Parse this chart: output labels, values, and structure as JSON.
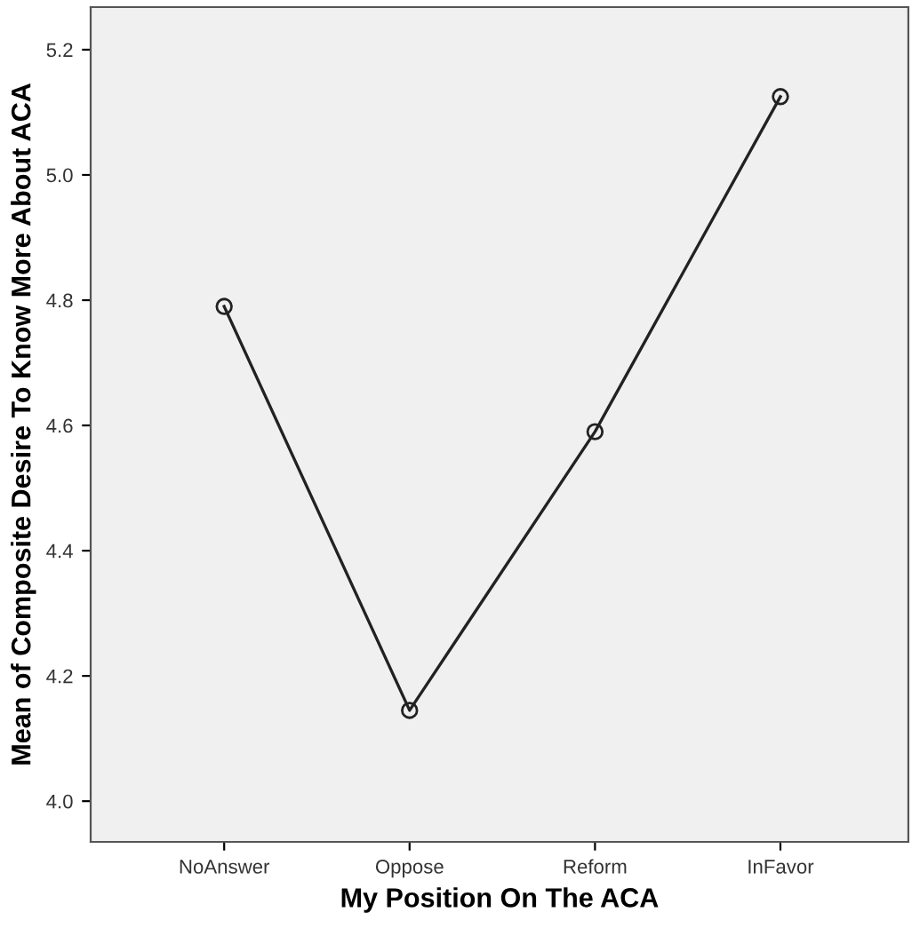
{
  "chart_data": {
    "type": "line",
    "xlabel": "My Position On The ACA",
    "ylabel": "Mean of Composite Desire To Know More About ACA",
    "categories": [
      "NoAnswer",
      "Oppose",
      "Reform",
      "InFavor"
    ],
    "series": [
      {
        "color": "#222222",
        "values": [
          4.79,
          4.145,
          4.59,
          5.125
        ]
      }
    ],
    "ylim": [
      3.935,
      5.268
    ],
    "yticks": [
      {
        "value": 4,
        "label": "4.0"
      },
      4.2,
      4.4,
      4.6,
      4.8,
      {
        "value": 5,
        "label": "5.0"
      },
      5.2
    ],
    "grid": false,
    "legend": false,
    "marker": "circle",
    "line_style": "solid"
  }
}
